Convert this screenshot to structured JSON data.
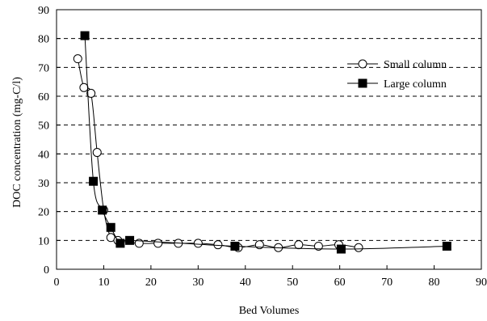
{
  "chart_data": {
    "type": "scatter",
    "xlabel": "Bed Volumes",
    "ylabel": "DOC concentration (mg-C/l)",
    "xlim": [
      0,
      90
    ],
    "ylim": [
      0,
      90
    ],
    "xticks": [
      0,
      10,
      20,
      30,
      40,
      50,
      60,
      70,
      80,
      90
    ],
    "yticks": [
      0,
      10,
      20,
      30,
      40,
      50,
      60,
      70,
      80,
      90
    ],
    "grid": "horizontal-dashed",
    "legend_position": "top-right",
    "series": [
      {
        "name": "Small column",
        "marker": "open-circle",
        "x": [
          4.5,
          5.8,
          7.3,
          8.6,
          10.0,
          11.5,
          13.0,
          17.5,
          21.5,
          25.8,
          30.0,
          34.2,
          38.5,
          43.0,
          47.0,
          51.3,
          55.5,
          59.8,
          64.0
        ],
        "y": [
          73,
          63,
          61,
          40.5,
          20.5,
          11,
          10,
          9,
          9,
          9,
          9,
          8.5,
          7.5,
          8.5,
          7.5,
          8.5,
          8,
          8.5,
          7.5
        ]
      },
      {
        "name": "Large column",
        "marker": "filled-square",
        "x": [
          6.0,
          7.8,
          9.7,
          11.5,
          13.5,
          15.5,
          37.8,
          60.3,
          82.7
        ],
        "y": [
          81,
          30.5,
          20.5,
          14.5,
          9,
          10,
          8,
          7,
          8
        ]
      }
    ]
  }
}
